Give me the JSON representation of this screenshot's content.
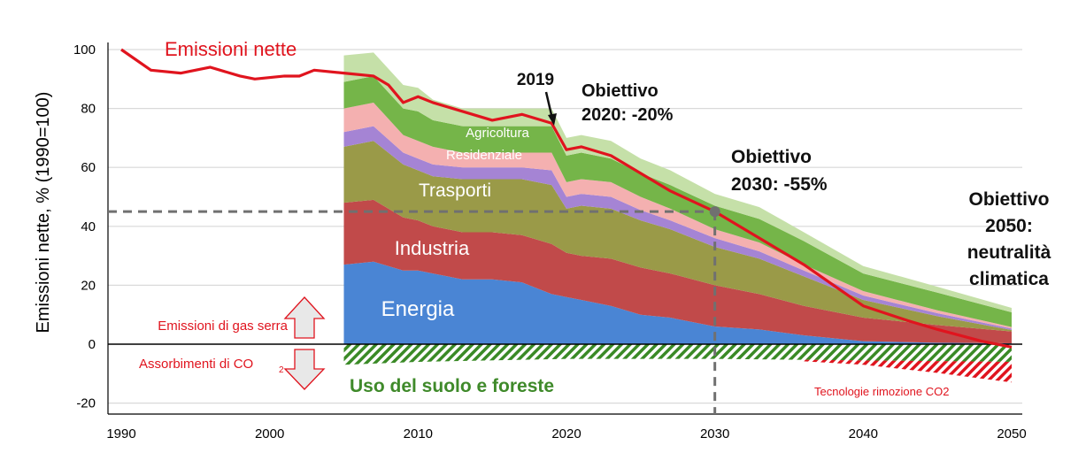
{
  "chart_data": {
    "type": "area",
    "ylabel": "Emissioni nette, % (1990=100)",
    "xlim": [
      1990,
      2050
    ],
    "ylim": [
      -20,
      100
    ],
    "x_ticks": [
      "1990",
      "2000",
      "2010",
      "2020",
      "2030",
      "2040",
      "2050"
    ],
    "y_ticks": [
      "100",
      "80",
      "60",
      "40",
      "20",
      "0",
      "-20"
    ],
    "grid": true,
    "stacked_years": [
      2005,
      2007,
      2009,
      2010,
      2011,
      2013,
      2015,
      2017,
      2019,
      2020,
      2021,
      2023,
      2025,
      2027,
      2030,
      2033,
      2036,
      2040,
      2045,
      2050
    ],
    "series": [
      {
        "name": "Energia",
        "color": "#4a85d4",
        "values": [
          27,
          28,
          25,
          25,
          24,
          22,
          22,
          21,
          17,
          16,
          15,
          13,
          10,
          9,
          6,
          5,
          3,
          1,
          0.5,
          0.3
        ]
      },
      {
        "name": "Industria",
        "color": "#c14a4a",
        "values": [
          21,
          21,
          18,
          17,
          16,
          16,
          16,
          16,
          17,
          15,
          15,
          16,
          16,
          15,
          14,
          12,
          10,
          8,
          6,
          4
        ]
      },
      {
        "name": "Trasporti",
        "color": "#9a9a48",
        "values": [
          19,
          20,
          18,
          17,
          17,
          18,
          18,
          19,
          20,
          15,
          17,
          17,
          16,
          15,
          13,
          12,
          10,
          6,
          3,
          0.5
        ]
      },
      {
        "name": "",
        "color": "#a584d4",
        "values": [
          5,
          5,
          4,
          4,
          4,
          4,
          4,
          4,
          5,
          4,
          4,
          4,
          3.5,
          3,
          3,
          2.5,
          2,
          1.5,
          1,
          0.5
        ]
      },
      {
        "name": "Residenziale",
        "color": "#f4b0b0",
        "values": [
          8,
          8,
          6,
          6,
          6,
          5,
          5,
          5,
          6,
          5,
          5,
          5,
          4.5,
          4,
          3,
          3,
          2,
          1.5,
          1,
          0.5
        ]
      },
      {
        "name": "Agricoltura",
        "color": "#75b549",
        "values": [
          9,
          9,
          9,
          10,
          9,
          9,
          9,
          9,
          9,
          9,
          9,
          8,
          8,
          8,
          8,
          8,
          8,
          6,
          6,
          5
        ]
      },
      {
        "name": "",
        "color": "#c5e0a8",
        "values": [
          9,
          8,
          8,
          8,
          7,
          6,
          6,
          6,
          6,
          6,
          6,
          6,
          5,
          5,
          4,
          4,
          3,
          2.5,
          2,
          1.5
        ]
      }
    ],
    "emissioni_nette": {
      "name": "Emissioni nette",
      "color": "#e0141e",
      "x": [
        1990,
        1992,
        1994,
        1996,
        1998,
        1999,
        2001,
        2002,
        2003,
        2005,
        2007,
        2008,
        2009,
        2010,
        2011,
        2013,
        2015,
        2017,
        2019,
        2020,
        2021,
        2023,
        2025,
        2027,
        2030,
        2033,
        2036,
        2038,
        2040,
        2043,
        2045,
        2048,
        2050
      ],
      "y": [
        100,
        93,
        92,
        94,
        91,
        90,
        91,
        91,
        93,
        92,
        91,
        88,
        82,
        84,
        82,
        79,
        76,
        78,
        75,
        66,
        67,
        64,
        58,
        52,
        45,
        36,
        27,
        20,
        13,
        8,
        5,
        1,
        -1
      ]
    },
    "uso_suolo_foreste": {
      "name": "Uso del suolo e foreste",
      "color": "#2e7d1f",
      "x": [
        2005,
        2010,
        2020,
        2030,
        2040,
        2050
      ],
      "y": [
        -7,
        -6,
        -5,
        -5,
        -5.5,
        -6
      ]
    },
    "tecnologie_rimozione": {
      "name": "Tecnologie rimozione CO2",
      "color": "#e0141e",
      "x": [
        2036,
        2040,
        2045,
        2050
      ],
      "y": [
        -0.5,
        -1.5,
        -4,
        -7
      ]
    },
    "annotations": {
      "emissioni_nette_label": "Emissioni nette",
      "emissioni_gas_serra": "Emissioni di gas serra",
      "assorbimenti_prefix": "Assorbimenti di CO",
      "assorbimenti_sub": "2",
      "uso_suolo": "Uso del suolo e foreste",
      "tecnologie_rimozione": "Tecnologie rimozione CO2",
      "year_2019": "2019",
      "obiettivo_2020": [
        "Obiettivo",
        "2020: -20%"
      ],
      "obiettivo_2030": [
        "Obiettivo",
        "2030: -55%"
      ],
      "obiettivo_2050": [
        "Obiettivo",
        "2050:",
        "neutralità",
        "climatica"
      ],
      "target_2030_value": 45
    },
    "sector_labels": {
      "energia": "Energia",
      "industria": "Industria",
      "trasporti": "Trasporti",
      "residenziale": "Residenziale",
      "agricoltura": "Agricoltura"
    }
  }
}
